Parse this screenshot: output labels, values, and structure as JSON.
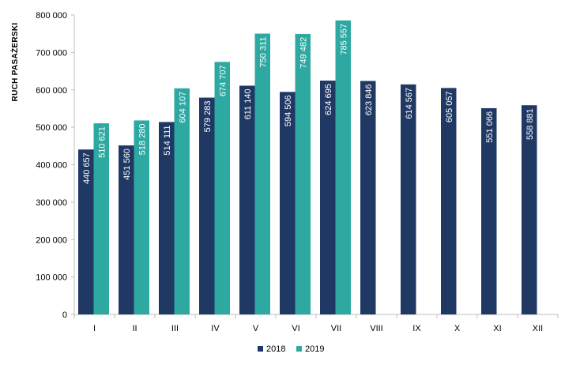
{
  "chart_data": {
    "type": "bar",
    "title": "",
    "xlabel": "",
    "ylabel": "RUCH PASAŻERSKI",
    "ylim": [
      0,
      800000
    ],
    "yticks": [
      "0",
      "100 000",
      "200 000",
      "300 000",
      "400 000",
      "500 000",
      "600 000",
      "700 000",
      "800 000"
    ],
    "ytick_values": [
      0,
      100000,
      200000,
      300000,
      400000,
      500000,
      600000,
      700000,
      800000
    ],
    "categories": [
      "I",
      "II",
      "III",
      "IV",
      "V",
      "VI",
      "VII",
      "VIII",
      "IX",
      "X",
      "XI",
      "XII"
    ],
    "series": [
      {
        "name": "2018",
        "color": "#203864",
        "values": [
          440657,
          451560,
          514111,
          579283,
          611140,
          594506,
          624695,
          623846,
          614567,
          605057,
          551066,
          558881
        ],
        "labels": [
          "440 657",
          "451 560",
          "514 111",
          "579 283",
          "611 140",
          "594 506",
          "624 695",
          "623 846",
          "614 567",
          "605 057",
          "551 066",
          "558 881"
        ]
      },
      {
        "name": "2019",
        "color": "#2ea9a1",
        "values": [
          510621,
          518280,
          604107,
          674707,
          750311,
          749482,
          785557,
          null,
          null,
          null,
          null,
          null
        ],
        "labels": [
          "510 621",
          "518 280",
          "604 107",
          "674 707",
          "750 311",
          "749 482",
          "785 557",
          null,
          null,
          null,
          null,
          null
        ]
      }
    ],
    "grid": false,
    "legend": "bottom-center"
  }
}
